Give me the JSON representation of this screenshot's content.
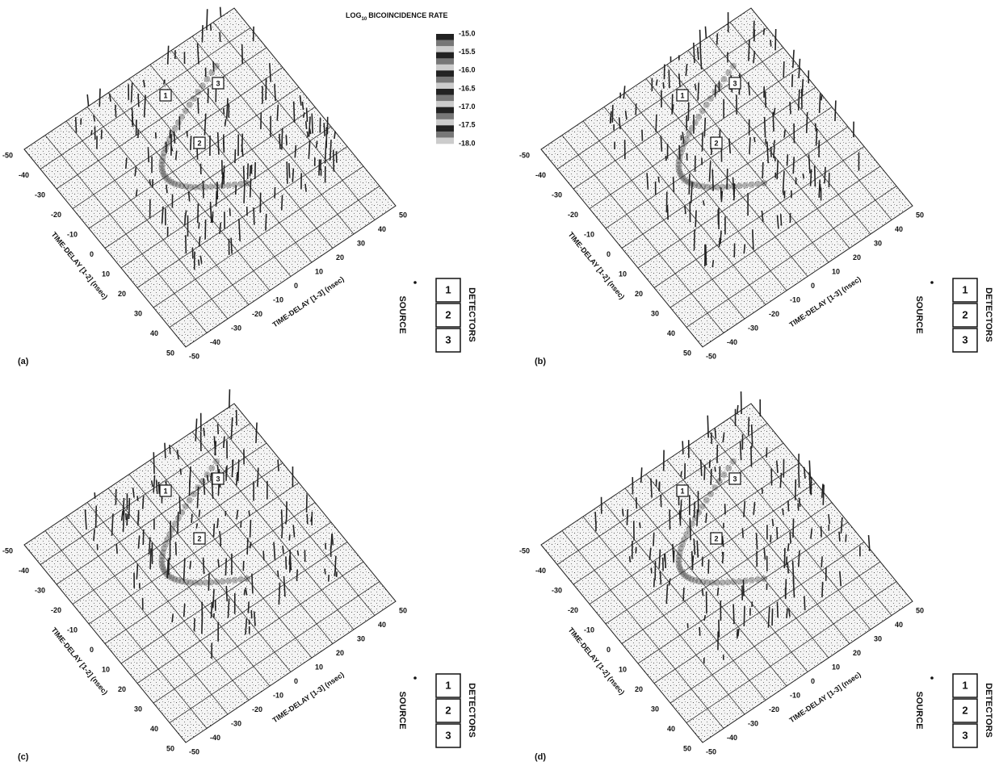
{
  "colorbar": {
    "title_prefix": "LOG",
    "title_subscript": "10",
    "title_rest": "BICOINCIDENCE RATE",
    "ticks": [
      "-15.0",
      "-15.5",
      "-16.0",
      "-16.5",
      "-17.0",
      "-17.5",
      "-18.0"
    ]
  },
  "panels": [
    {
      "label": "(a)",
      "x_axis_title": "TIME-DELAY [1-2] (nsec)",
      "y_axis_title": "TIME-DELAY [1-3] (nsec)",
      "x_ticks": [
        -50,
        -40,
        -30,
        -20,
        -10,
        0,
        10,
        20,
        30,
        40,
        50
      ],
      "y_ticks": [
        -50,
        -40,
        -30,
        -20,
        -10,
        0,
        10,
        20,
        30,
        40,
        50
      ],
      "surface_markers": [
        "1",
        "2",
        "3"
      ],
      "legend": {
        "detectors": [
          "1",
          "2",
          "3"
        ],
        "detectors_title": "DETECTORS",
        "source": "SOURCE"
      }
    },
    {
      "label": "(b)",
      "x_axis_title": "TIME-DELAY [1-2] (nsec)",
      "y_axis_title": "TIME-DELAY [1-3] (nsec)",
      "x_ticks": [
        -50,
        -40,
        -30,
        -20,
        -10,
        0,
        10,
        20,
        30,
        40,
        50
      ],
      "y_ticks": [
        -50,
        -40,
        -30,
        -20,
        -10,
        0,
        10,
        20,
        30,
        40,
        50
      ],
      "surface_markers": [
        "1",
        "2",
        "3"
      ],
      "legend": {
        "detectors": [
          "1",
          "2",
          "3"
        ],
        "detectors_title": "DETECTORS",
        "source": "SOURCE"
      }
    },
    {
      "label": "(c)",
      "x_axis_title": "TIME-DELAY [1-2] (nsec)",
      "y_axis_title": "TIME-DELAY [1-3] (nsec)",
      "x_ticks": [
        -50,
        -40,
        -30,
        -20,
        -10,
        0,
        10,
        20,
        30,
        40,
        50
      ],
      "y_ticks": [
        -50,
        -40,
        -30,
        -20,
        -10,
        0,
        10,
        20,
        30,
        40,
        50
      ],
      "surface_markers": [
        "1",
        "2",
        "3"
      ],
      "legend": {
        "detectors": [
          "1",
          "2",
          "3"
        ],
        "detectors_title": "DETECTORS",
        "source": "SOURCE"
      }
    },
    {
      "label": "(d)",
      "x_axis_title": "TIME-DELAY [1-2] (nsec)",
      "y_axis_title": "TIME-DELAY [1-3] (nsec)",
      "x_ticks": [
        -50,
        -40,
        -30,
        -20,
        -10,
        0,
        10,
        20,
        30,
        40,
        50
      ],
      "y_ticks": [
        -50,
        -40,
        -30,
        -20,
        -10,
        0,
        10,
        20,
        30,
        40,
        50
      ],
      "surface_markers": [
        "1",
        "2",
        "3"
      ],
      "legend": {
        "detectors": [
          "1",
          "2",
          "3"
        ],
        "detectors_title": "DETECTORS",
        "source": "SOURCE"
      }
    }
  ]
}
